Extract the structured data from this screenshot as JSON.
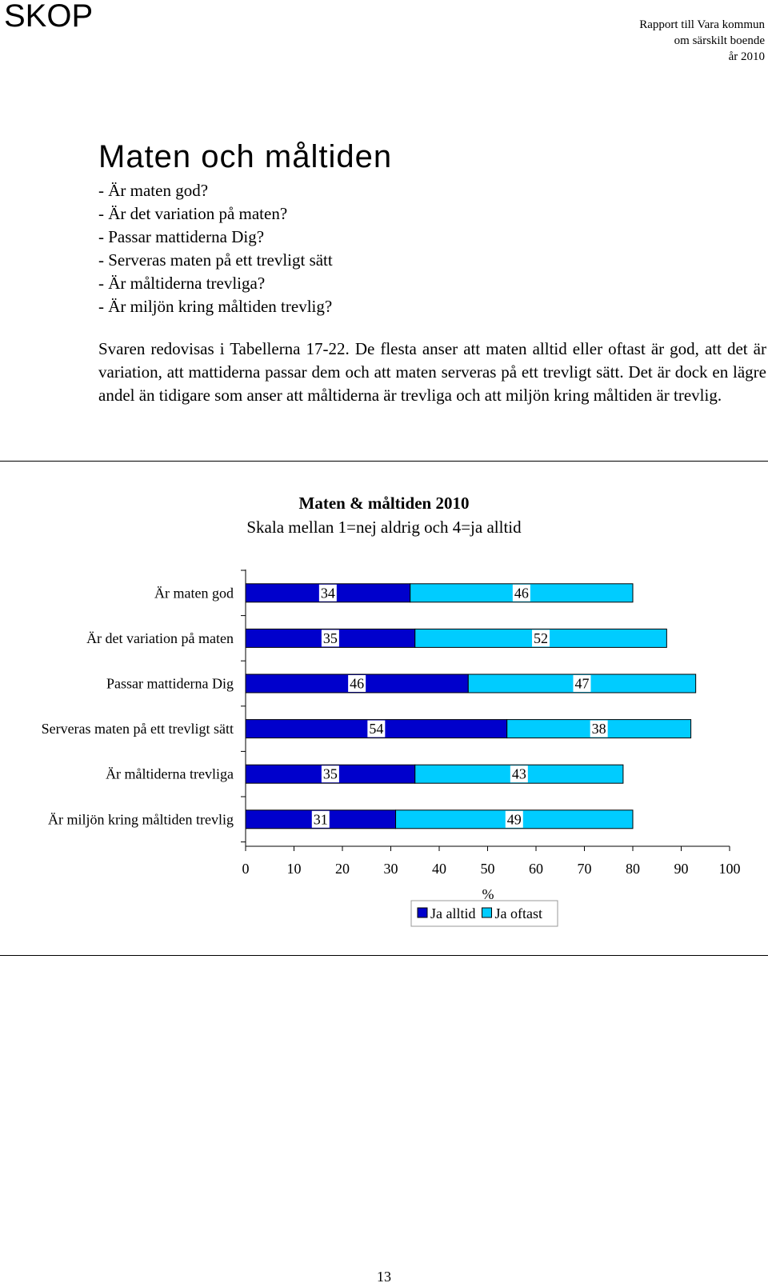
{
  "header": {
    "logo": "SKOP",
    "report_lines": [
      "Rapport till Vara kommun",
      "om särskilt boende",
      "år 2010"
    ]
  },
  "section": {
    "title": "Maten och måltiden",
    "questions": [
      "- Är maten god?",
      "- Är det variation på maten?",
      "- Passar mattiderna Dig?",
      "- Serveras maten på ett trevligt sätt",
      "- Är måltiderna trevliga?",
      "- Är miljön kring måltiden trevlig?"
    ],
    "body": "Svaren redovisas i Tabellerna 17-22. De flesta anser att maten alltid eller oftast är god, att det är variation, att mattiderna passar dem och att maten serveras på ett trevligt sätt. Det är dock en lägre andel än tidigare som anser att måltiderna är trevliga och att miljön kring måltiden är trevlig."
  },
  "chart_data": {
    "type": "bar",
    "orientation": "horizontal",
    "stacked": true,
    "title": "Maten & måltiden 2010",
    "subtitle": "Skala mellan 1=nej aldrig och 4=ja alltid",
    "categories": [
      "Är maten god",
      "Är det variation på maten",
      "Passar mattiderna Dig",
      "Serveras maten på ett trevligt sätt",
      "Är måltiderna trevliga",
      "Är miljön kring måltiden trevlig"
    ],
    "series": [
      {
        "name": "Ja alltid",
        "color": "#0000cc",
        "values": [
          34,
          35,
          46,
          54,
          35,
          31
        ]
      },
      {
        "name": "Ja oftast",
        "color": "#00ccff",
        "values": [
          46,
          52,
          47,
          38,
          43,
          49
        ]
      }
    ],
    "xlabel": "%",
    "xlim": [
      0,
      100
    ],
    "xticks": [
      0,
      10,
      20,
      30,
      40,
      50,
      60,
      70,
      80,
      90,
      100
    ],
    "grid": false,
    "legend": "bottom-center",
    "data_labels": true
  },
  "footer": {
    "page_number": "13"
  }
}
